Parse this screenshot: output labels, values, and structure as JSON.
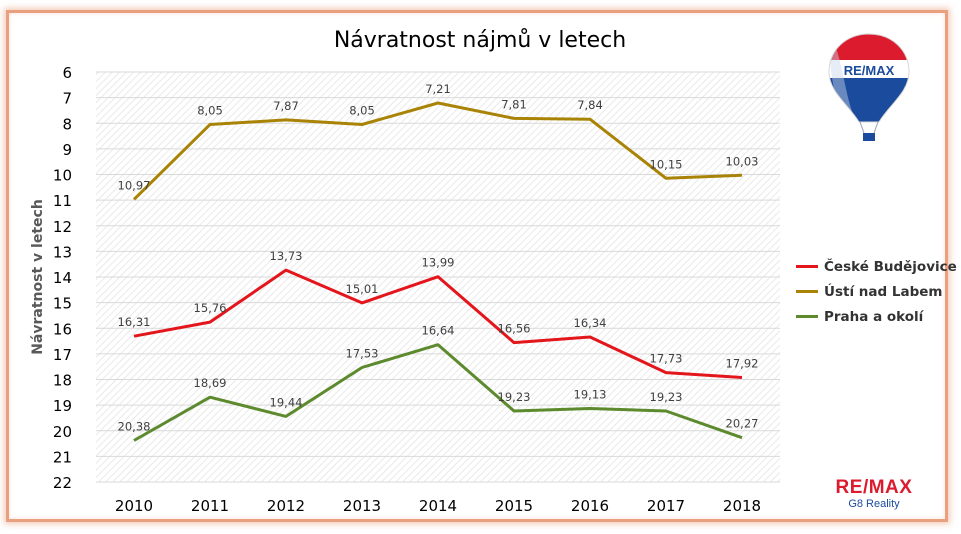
{
  "chart_data": {
    "type": "line",
    "title": "Návratnost nájmů v letech",
    "ylabel": "Návratnost v letech",
    "xlabel": "",
    "categories": [
      "2010",
      "2011",
      "2012",
      "2013",
      "2014",
      "2015",
      "2016",
      "2017",
      "2018"
    ],
    "y_ticks": [
      "6",
      "7",
      "8",
      "9",
      "10",
      "11",
      "12",
      "13",
      "14",
      "15",
      "16",
      "17",
      "18",
      "19",
      "20",
      "21",
      "22"
    ],
    "ylim": [
      6,
      22
    ],
    "y_inverted": true,
    "grid": true,
    "legend_position": "right",
    "series": [
      {
        "name": "České Budějovice",
        "color": "#e3161c",
        "values": [
          16.31,
          15.76,
          13.73,
          15.01,
          13.99,
          16.56,
          16.34,
          17.73,
          17.92
        ],
        "labels": [
          "16,31",
          "15,76",
          "13,73",
          "15,01",
          "13,99",
          "16,56",
          "16,34",
          "17,73",
          "17,92"
        ]
      },
      {
        "name": "Ústí nad Labem",
        "color": "#a98306",
        "values": [
          10.97,
          8.05,
          7.87,
          8.05,
          7.21,
          7.81,
          7.84,
          10.15,
          10.03
        ],
        "labels": [
          "10,97",
          "8,05",
          "7,87",
          "8,05",
          "7,21",
          "7,81",
          "7,84",
          "10,15",
          "10,03"
        ]
      },
      {
        "name": "Praha a okolí",
        "color": "#5c8a2d",
        "values": [
          20.38,
          18.69,
          19.44,
          17.53,
          16.64,
          19.23,
          19.13,
          19.23,
          20.27
        ],
        "labels": [
          "20,38",
          "18,69",
          "19,44",
          "17,53",
          "16,64",
          "19,23",
          "19,13",
          "19,23",
          "20,27"
        ]
      }
    ]
  },
  "branding": {
    "logo_text": "RE/MAX",
    "brand_name": "RE/MAX",
    "brand_sub": "G8 Reality",
    "colors": {
      "red": "#dc1c2e",
      "blue": "#1b4b9c"
    }
  }
}
